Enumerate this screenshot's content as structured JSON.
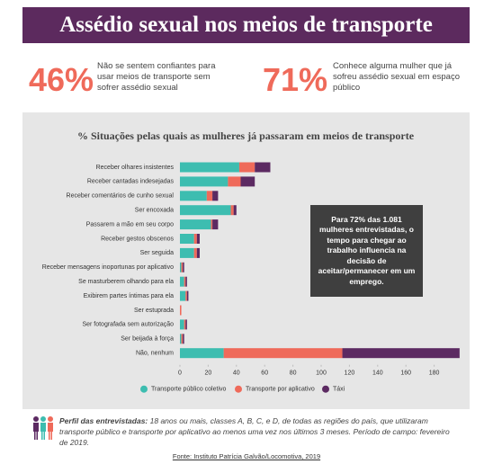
{
  "header": {
    "title": "Assédio sexual nos meios de transporte"
  },
  "stats": [
    {
      "value": "46%",
      "text": "Não se sentem confiantes para usar meios de transporte sem sofrer assédio sexual"
    },
    {
      "value": "71%",
      "text": "Conhece alguma mulher que já sofreu assédio sexual em espaço público"
    }
  ],
  "chart_data": {
    "type": "bar",
    "orientation": "horizontal",
    "stacked": true,
    "title": "% Situações pelas quais as mulheres já passaram em meios de transporte",
    "categories": [
      "Receber olhares insistentes",
      "Receber cantadas indesejadas",
      "Receber comentários de cunho sexual",
      "Ser encoxada",
      "Passarem a mão em seu corpo",
      "Receber gestos obscenos",
      "Ser seguida",
      "Receber mensagens inoportunas por aplicativo",
      "Se masturberem olhando para ela",
      "Exibirem partes íntimas para ela",
      "Ser estuprada",
      "Ser fotografada sem autorização",
      "Ser beijada à força",
      "Não, nenhum"
    ],
    "series": [
      {
        "name": "Transporte público coletivo",
        "color": "#3dbdb0",
        "values": [
          42,
          34,
          19,
          36,
          22,
          10,
          10,
          1,
          3,
          4,
          0,
          3,
          1,
          31
        ]
      },
      {
        "name": "Transporte por aplicativo",
        "color": "#ef6a5a",
        "values": [
          11,
          9,
          4,
          2,
          1,
          2,
          2,
          1,
          1,
          1,
          1,
          1,
          1,
          84
        ]
      },
      {
        "name": "Táxi",
        "color": "#5c2a62",
        "values": [
          11,
          10,
          4,
          2,
          4,
          2,
          2,
          1,
          1,
          1,
          0,
          1,
          1,
          83
        ]
      }
    ],
    "xlim": [
      0,
      200
    ],
    "xticks": [
      0,
      20,
      40,
      60,
      80,
      100,
      120,
      140,
      160,
      180
    ],
    "legend": "bottom",
    "annotation": "Para 72% das 1.081 mulheres entrevistadas, o tempo para chegar ao trabalho influencia na decisão de aceitar/permanecer em um emprego."
  },
  "footer": {
    "profile_label": "Perfil das entrevistadas:",
    "profile_text": "18 anos ou mais, classes A, B, C, e D, de todas as regiões do país, que utilizaram transporte público e transporte por aplicativo ao menos uma vez nos últimos 3 meses. Período de campo: fevereiro de 2019.",
    "source": "Fonte: Instituto Patrícia Galvão/Locomotiva, 2019"
  }
}
